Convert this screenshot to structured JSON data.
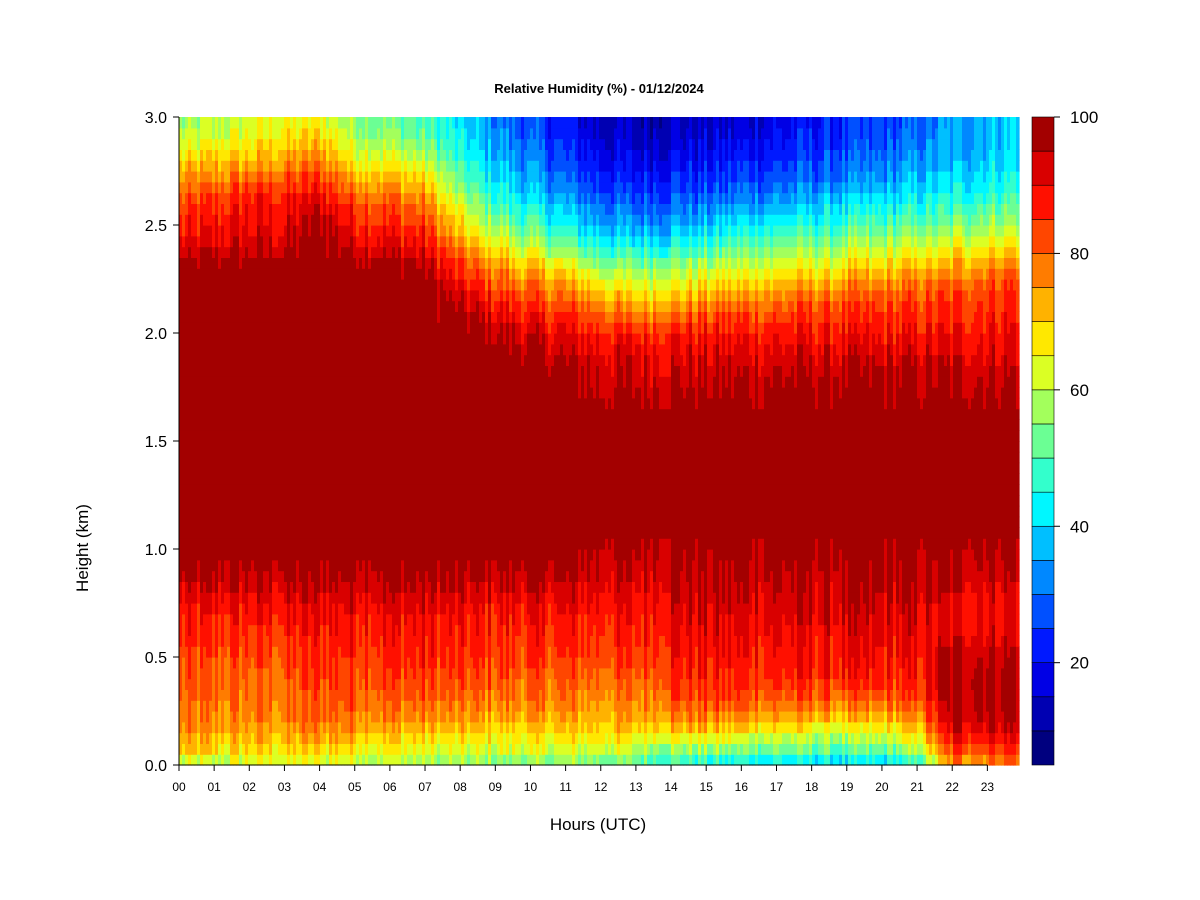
{
  "chart_data": {
    "type": "heatmap",
    "title": "Relative Humidity (%) - 01/12/2024",
    "xlabel": "Hours (UTC)",
    "ylabel": "Height (km)",
    "xlim": [
      0,
      23.9
    ],
    "ylim": [
      0.0,
      3.0
    ],
    "x_ticks": [
      "00",
      "01",
      "02",
      "03",
      "04",
      "05",
      "06",
      "07",
      "08",
      "09",
      "10",
      "11",
      "12",
      "13",
      "14",
      "15",
      "16",
      "17",
      "18",
      "19",
      "20",
      "21",
      "22",
      "23"
    ],
    "y_ticks": [
      "0.0",
      "0.5",
      "1.0",
      "1.5",
      "2.0",
      "2.5",
      "3.0"
    ],
    "colorbar": {
      "range": [
        5,
        100
      ],
      "ticks": [
        "20",
        "40",
        "60",
        "80",
        "100"
      ],
      "levels": [
        5,
        10,
        15,
        20,
        25,
        30,
        35,
        40,
        45,
        50,
        55,
        60,
        65,
        70,
        75,
        80,
        85,
        90,
        95,
        100
      ],
      "colors": [
        "#00007f",
        "#0000b2",
        "#0000e5",
        "#0019ff",
        "#0050ff",
        "#0088ff",
        "#00bfff",
        "#00f7ff",
        "#33ffcc",
        "#6bff94",
        "#a3ff5c",
        "#dbff24",
        "#ffe800",
        "#ffb200",
        "#ff7c00",
        "#ff4600",
        "#ff1000",
        "#d90000",
        "#a30000",
        "#7f0000"
      ]
    },
    "layer_heights_km": [
      0.0,
      0.05,
      0.1,
      0.15,
      0.2,
      0.3,
      0.4,
      0.5,
      0.6,
      0.7,
      0.8,
      0.9,
      1.0,
      1.1,
      1.2,
      1.3,
      1.4,
      1.5,
      1.6,
      1.7,
      1.8,
      1.9,
      2.0,
      2.1,
      2.2,
      2.3,
      2.4,
      2.5,
      2.6,
      2.7,
      2.8,
      2.9,
      3.0
    ],
    "rh_profiles": [
      {
        "hour": 0,
        "rh": [
          55,
          68,
          72,
          75,
          78,
          78,
          80,
          82,
          85,
          87,
          90,
          96,
          100,
          100,
          100,
          100,
          100,
          100,
          100,
          100,
          100,
          100,
          100,
          100,
          100,
          100,
          90,
          85,
          82,
          75,
          68,
          60,
          55
        ]
      },
      {
        "hour": 1,
        "rh": [
          58,
          65,
          70,
          73,
          76,
          78,
          80,
          82,
          85,
          87,
          92,
          96,
          100,
          100,
          100,
          100,
          100,
          100,
          100,
          100,
          100,
          100,
          100,
          100,
          100,
          100,
          92,
          88,
          85,
          78,
          70,
          62,
          58
        ]
      },
      {
        "hour": 2,
        "rh": [
          60,
          66,
          70,
          73,
          76,
          78,
          80,
          82,
          85,
          88,
          92,
          96,
          100,
          100,
          100,
          100,
          100,
          100,
          100,
          100,
          100,
          100,
          100,
          100,
          100,
          100,
          93,
          90,
          88,
          82,
          72,
          65,
          62
        ]
      },
      {
        "hour": 3,
        "rh": [
          62,
          66,
          70,
          73,
          76,
          78,
          80,
          82,
          85,
          88,
          92,
          96,
          100,
          100,
          100,
          100,
          100,
          100,
          100,
          100,
          100,
          100,
          100,
          100,
          100,
          100,
          94,
          90,
          88,
          82,
          74,
          68,
          64
        ]
      },
      {
        "hour": 4,
        "rh": [
          62,
          66,
          72,
          76,
          80,
          82,
          84,
          86,
          88,
          90,
          94,
          98,
          100,
          100,
          100,
          100,
          100,
          100,
          100,
          100,
          100,
          100,
          100,
          100,
          100,
          100,
          100,
          98,
          92,
          86,
          78,
          70,
          64
        ]
      },
      {
        "hour": 5,
        "rh": [
          60,
          66,
          70,
          74,
          78,
          82,
          84,
          86,
          88,
          90,
          94,
          98,
          100,
          100,
          100,
          100,
          100,
          100,
          100,
          100,
          100,
          100,
          100,
          100,
          100,
          100,
          94,
          88,
          84,
          76,
          66,
          60,
          56
        ]
      },
      {
        "hour": 6,
        "rh": [
          58,
          64,
          68,
          72,
          76,
          80,
          84,
          86,
          88,
          90,
          94,
          98,
          100,
          100,
          100,
          100,
          100,
          100,
          100,
          100,
          100,
          100,
          100,
          100,
          100,
          100,
          92,
          86,
          82,
          74,
          64,
          56,
          52
        ]
      },
      {
        "hour": 7,
        "rh": [
          56,
          62,
          66,
          70,
          74,
          80,
          84,
          86,
          88,
          90,
          94,
          98,
          100,
          100,
          100,
          100,
          100,
          100,
          100,
          100,
          100,
          100,
          100,
          100,
          100,
          96,
          90,
          84,
          78,
          70,
          60,
          52,
          48
        ]
      },
      {
        "hour": 8,
        "rh": [
          54,
          60,
          64,
          68,
          74,
          78,
          82,
          84,
          86,
          88,
          92,
          96,
          100,
          100,
          100,
          100,
          100,
          100,
          100,
          100,
          100,
          100,
          100,
          96,
          90,
          84,
          76,
          68,
          60,
          52,
          46,
          42,
          40
        ]
      },
      {
        "hour": 9,
        "rh": [
          52,
          60,
          64,
          68,
          72,
          78,
          82,
          84,
          86,
          88,
          92,
          96,
          100,
          100,
          100,
          100,
          100,
          100,
          100,
          100,
          100,
          100,
          96,
          90,
          84,
          76,
          66,
          56,
          48,
          42,
          38,
          34,
          32
        ]
      },
      {
        "hour": 10,
        "rh": [
          52,
          60,
          64,
          68,
          72,
          78,
          80,
          84,
          86,
          88,
          92,
          96,
          100,
          100,
          100,
          100,
          100,
          100,
          100,
          100,
          100,
          96,
          92,
          86,
          80,
          72,
          60,
          50,
          42,
          36,
          32,
          28,
          26
        ]
      },
      {
        "hour": 11,
        "rh": [
          54,
          60,
          64,
          68,
          72,
          78,
          80,
          84,
          86,
          88,
          92,
          96,
          100,
          100,
          100,
          100,
          100,
          100,
          100,
          100,
          98,
          94,
          90,
          84,
          76,
          66,
          54,
          44,
          36,
          30,
          26,
          22,
          20
        ]
      },
      {
        "hour": 12,
        "rh": [
          52,
          60,
          66,
          70,
          72,
          76,
          80,
          84,
          86,
          88,
          92,
          94,
          96,
          100,
          100,
          100,
          100,
          100,
          100,
          96,
          94,
          92,
          88,
          80,
          70,
          58,
          46,
          36,
          30,
          24,
          20,
          16,
          14
        ]
      },
      {
        "hour": 13,
        "rh": [
          48,
          56,
          62,
          68,
          72,
          76,
          80,
          84,
          86,
          88,
          90,
          94,
          96,
          100,
          100,
          100,
          100,
          100,
          100,
          96,
          94,
          92,
          86,
          76,
          66,
          56,
          44,
          34,
          28,
          22,
          18,
          14,
          12
        ]
      },
      {
        "hour": 14,
        "rh": [
          44,
          54,
          62,
          70,
          76,
          82,
          86,
          88,
          90,
          92,
          94,
          96,
          98,
          100,
          100,
          100,
          100,
          100,
          100,
          98,
          94,
          92,
          88,
          78,
          68,
          58,
          46,
          36,
          30,
          24,
          20,
          16,
          14
        ]
      },
      {
        "hour": 15,
        "rh": [
          42,
          52,
          60,
          68,
          76,
          82,
          86,
          88,
          90,
          92,
          94,
          96,
          98,
          100,
          100,
          100,
          100,
          100,
          100,
          98,
          94,
          92,
          88,
          80,
          70,
          60,
          48,
          38,
          30,
          24,
          20,
          16,
          14
        ]
      },
      {
        "hour": 16,
        "rh": [
          40,
          50,
          58,
          66,
          74,
          82,
          86,
          88,
          90,
          92,
          94,
          96,
          98,
          100,
          100,
          100,
          100,
          100,
          100,
          98,
          94,
          92,
          88,
          82,
          72,
          62,
          52,
          42,
          34,
          26,
          22,
          18,
          16
        ]
      },
      {
        "hour": 17,
        "rh": [
          40,
          50,
          58,
          64,
          72,
          80,
          86,
          88,
          90,
          92,
          94,
          96,
          98,
          100,
          100,
          100,
          100,
          100,
          100,
          98,
          96,
          92,
          88,
          82,
          74,
          64,
          54,
          44,
          36,
          28,
          24,
          20,
          18
        ]
      },
      {
        "hour": 18,
        "rh": [
          38,
          48,
          56,
          62,
          70,
          80,
          86,
          88,
          90,
          92,
          94,
          96,
          98,
          100,
          100,
          100,
          100,
          100,
          100,
          98,
          96,
          92,
          88,
          84,
          76,
          66,
          56,
          46,
          38,
          30,
          26,
          22,
          20
        ]
      },
      {
        "hour": 19,
        "rh": [
          36,
          46,
          54,
          60,
          68,
          78,
          86,
          88,
          90,
          92,
          94,
          96,
          98,
          100,
          100,
          100,
          100,
          100,
          100,
          98,
          96,
          92,
          88,
          84,
          78,
          68,
          58,
          48,
          40,
          32,
          28,
          24,
          22
        ]
      },
      {
        "hour": 20,
        "rh": [
          38,
          48,
          56,
          62,
          70,
          80,
          86,
          88,
          90,
          92,
          94,
          96,
          98,
          100,
          100,
          100,
          100,
          100,
          100,
          98,
          96,
          92,
          88,
          84,
          78,
          70,
          60,
          50,
          42,
          34,
          30,
          26,
          24
        ]
      },
      {
        "hour": 21,
        "rh": [
          44,
          54,
          62,
          68,
          74,
          82,
          86,
          88,
          90,
          92,
          94,
          96,
          98,
          100,
          100,
          100,
          100,
          100,
          100,
          98,
          96,
          92,
          88,
          84,
          80,
          72,
          62,
          52,
          44,
          38,
          34,
          30,
          28
        ]
      },
      {
        "hour": 22,
        "rh": [
          74,
          80,
          86,
          90,
          94,
          96,
          98,
          96,
          92,
          90,
          92,
          96,
          98,
          100,
          100,
          100,
          100,
          100,
          100,
          98,
          96,
          92,
          88,
          86,
          82,
          74,
          64,
          54,
          46,
          40,
          36,
          34,
          34
        ]
      },
      {
        "hour": 23,
        "rh": [
          76,
          82,
          88,
          92,
          96,
          98,
          98,
          96,
          92,
          90,
          92,
          96,
          98,
          100,
          100,
          100,
          100,
          100,
          100,
          98,
          96,
          92,
          90,
          86,
          84,
          78,
          68,
          58,
          50,
          44,
          40,
          38,
          38
        ]
      },
      {
        "hour": 23.9,
        "rh": [
          78,
          84,
          88,
          92,
          96,
          98,
          98,
          96,
          92,
          90,
          92,
          96,
          98,
          100,
          100,
          100,
          100,
          100,
          100,
          98,
          96,
          92,
          90,
          88,
          86,
          80,
          70,
          60,
          52,
          46,
          42,
          40,
          40
        ]
      }
    ]
  }
}
